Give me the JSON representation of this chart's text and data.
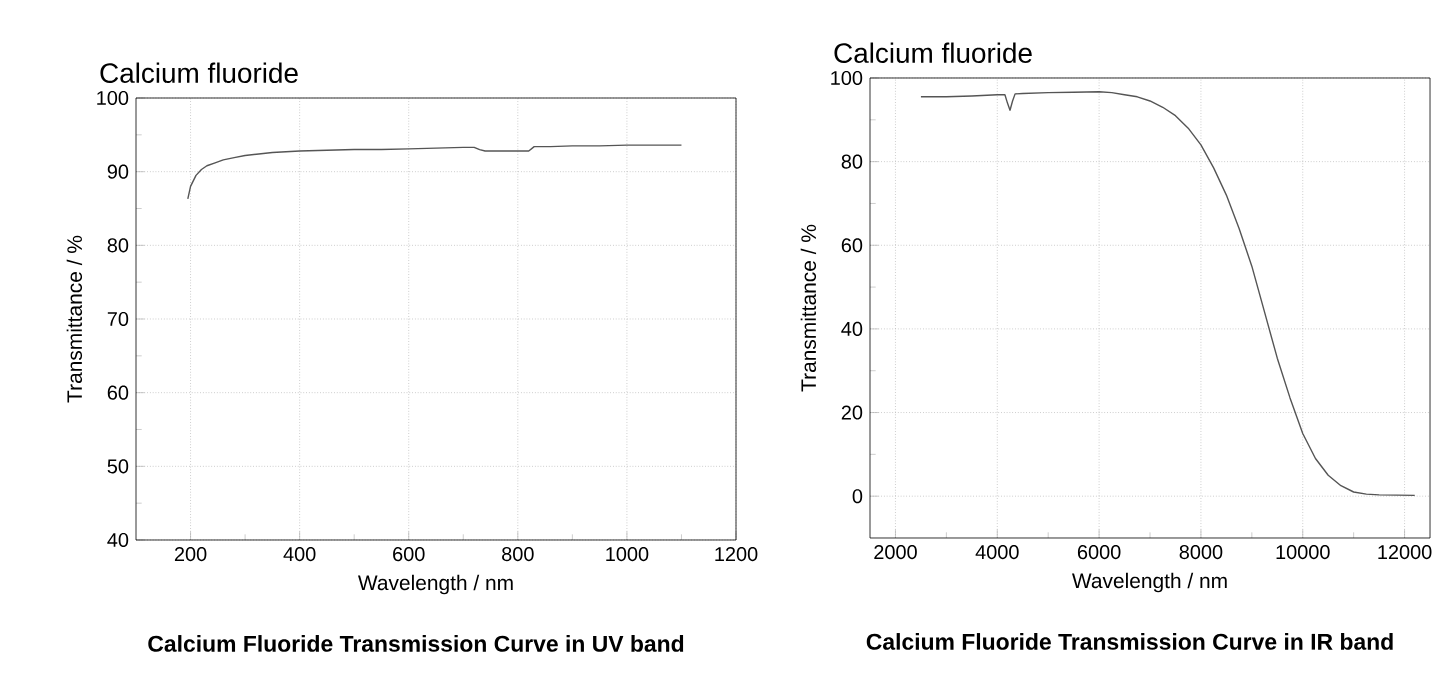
{
  "chart_data": [
    {
      "type": "line",
      "title": "Calcium fluoride",
      "xlabel": "Wavelength / nm",
      "ylabel": "Transmittance / %",
      "x": [
        195,
        200,
        210,
        220,
        230,
        245,
        260,
        280,
        300,
        325,
        350,
        375,
        400,
        450,
        500,
        550,
        600,
        650,
        700,
        720,
        730,
        740,
        780,
        820,
        830,
        860,
        900,
        950,
        1000,
        1050,
        1100
      ],
      "series": [
        {
          "color": "#555555",
          "values": [
            86.3,
            88.0,
            89.5,
            90.3,
            90.8,
            91.2,
            91.6,
            91.9,
            92.2,
            92.4,
            92.6,
            92.7,
            92.8,
            92.9,
            93.0,
            93.0,
            93.1,
            93.2,
            93.3,
            93.3,
            93.0,
            92.8,
            92.8,
            92.8,
            93.4,
            93.4,
            93.5,
            93.5,
            93.6,
            93.6,
            93.6
          ]
        }
      ],
      "xlim": [
        100,
        1200
      ],
      "ylim": [
        40,
        100
      ],
      "xticks": [
        200,
        400,
        600,
        800,
        1000,
        1200
      ],
      "yticks": [
        40,
        50,
        60,
        70,
        80,
        90,
        100
      ],
      "grid": true,
      "line_style": "solid",
      "marker": "none",
      "annotations": [
        "**Calcium Fluoride Transmission Curve in UV band**"
      ]
    },
    {
      "type": "line",
      "title": "Calcium fluoride",
      "xlabel": "Wavelength / nm",
      "ylabel": "Transmittance / %",
      "x": [
        2500,
        3000,
        3500,
        4000,
        4150,
        4200,
        4250,
        4300,
        4350,
        4500,
        5000,
        5500,
        6000,
        6250,
        6500,
        6750,
        7000,
        7250,
        7500,
        7750,
        8000,
        8250,
        8500,
        8750,
        9000,
        9250,
        9500,
        9750,
        10000,
        10250,
        10500,
        10750,
        11000,
        11250,
        11500,
        12200
      ],
      "series": [
        {
          "color": "#555555",
          "values": [
            95.5,
            95.5,
            95.7,
            96.0,
            96.0,
            94.0,
            92.3,
            94.5,
            96.2,
            96.3,
            96.5,
            96.6,
            96.7,
            96.5,
            96.0,
            95.5,
            94.5,
            93.0,
            91.0,
            88.0,
            84.0,
            78.5,
            72.0,
            64.0,
            55.0,
            44.0,
            33.0,
            23.5,
            15.0,
            9.0,
            5.0,
            2.5,
            1.0,
            0.5,
            0.3,
            0.2
          ]
        }
      ],
      "xlim": [
        1500,
        12500
      ],
      "ylim": [
        -10,
        100
      ],
      "xticks": [
        2000,
        4000,
        6000,
        8000,
        10000,
        12000
      ],
      "yticks": [
        0,
        20,
        40,
        60,
        80,
        100
      ],
      "grid": true,
      "line_style": "solid",
      "marker": "none",
      "annotations": [
        "**Calcium Fluoride Transmission Curve in IR band**"
      ]
    }
  ]
}
